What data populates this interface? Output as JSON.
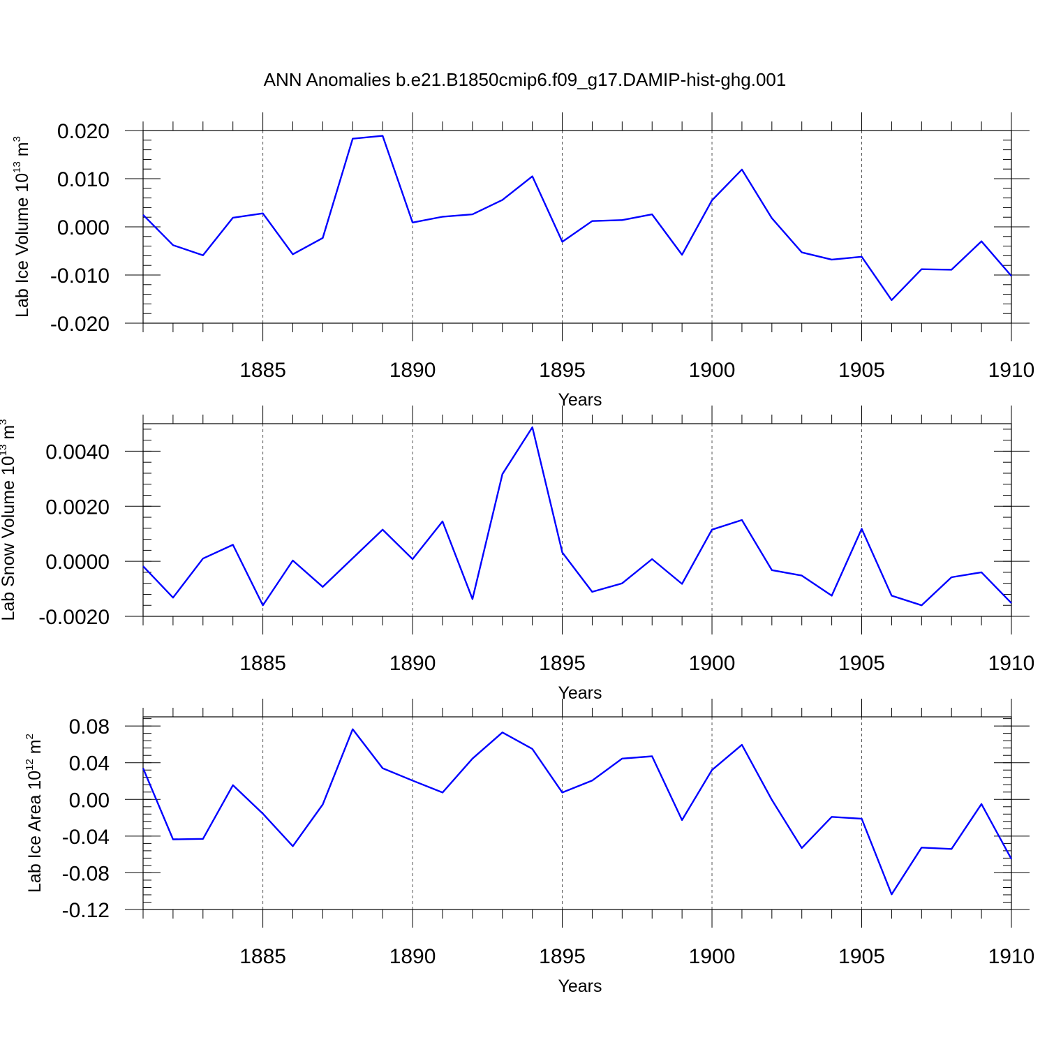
{
  "title": "ANN Anomalies b.e21.B1850cmip6.f09_g17.DAMIP-hist-ghg.001",
  "colors": {
    "series": "#0000ff",
    "axes": "#000000",
    "gridline": "#555555"
  },
  "chart_data": [
    {
      "type": "line",
      "ylabel": {
        "text": "Lab Ice Volume 10",
        "exponent": "13",
        "unit": " m",
        "unit_exponent": "3"
      },
      "xlabel": "Years",
      "xlim": [
        1881,
        1910
      ],
      "ylim": [
        -0.02,
        0.02
      ],
      "ytick_labels": [
        "-0.020",
        "-0.010",
        "0.000",
        "0.010",
        "0.020"
      ],
      "yticks": [
        -0.02,
        -0.01,
        0.0,
        0.01,
        0.02
      ],
      "xticks": [
        1885,
        1890,
        1895,
        1900,
        1905,
        1910
      ],
      "xtick_labels": [
        "1885",
        "1890",
        "1895",
        "1900",
        "1905",
        "1910"
      ],
      "grid": "vertical dashed at major x ticks",
      "series": [
        {
          "x": [
            1881,
            1882,
            1883,
            1884,
            1885,
            1886,
            1887,
            1888,
            1889,
            1890,
            1891,
            1892,
            1893,
            1894,
            1895,
            1896,
            1897,
            1898,
            1899,
            1900,
            1901,
            1902,
            1903,
            1904,
            1905,
            1906,
            1907,
            1908,
            1909,
            1910
          ],
          "values": [
            0.0025,
            -0.0038,
            -0.0059,
            0.0019,
            0.0028,
            -0.0057,
            -0.0023,
            0.0183,
            0.0189,
            0.0009,
            0.0021,
            0.0026,
            0.0056,
            0.0105,
            -0.0031,
            0.0012,
            0.0014,
            0.0026,
            -0.0058,
            0.0055,
            0.0119,
            0.0018,
            -0.0053,
            -0.0068,
            -0.0062,
            -0.0152,
            -0.0088,
            -0.0089,
            -0.003,
            -0.0102
          ]
        }
      ]
    },
    {
      "type": "line",
      "ylabel": {
        "text": "Lab Snow Volume 10",
        "exponent": "13",
        "unit": " m",
        "unit_exponent": "3"
      },
      "xlabel": "Years",
      "xlim": [
        1881,
        1910
      ],
      "ylim": [
        -0.002,
        0.005
      ],
      "ytick_labels": [
        "-0.0020",
        "0.0000",
        "0.0020",
        "0.0040"
      ],
      "yticks": [
        -0.002,
        0.0,
        0.002,
        0.004
      ],
      "xticks": [
        1885,
        1890,
        1895,
        1900,
        1905,
        1910
      ],
      "xtick_labels": [
        "1885",
        "1890",
        "1895",
        "1900",
        "1905",
        "1910"
      ],
      "grid": "vertical dashed at major x ticks",
      "series": [
        {
          "x": [
            1881,
            1882,
            1883,
            1884,
            1885,
            1886,
            1887,
            1888,
            1889,
            1890,
            1891,
            1892,
            1893,
            1894,
            1895,
            1896,
            1897,
            1898,
            1899,
            1900,
            1901,
            1902,
            1903,
            1904,
            1905,
            1906,
            1907,
            1908,
            1909,
            1910
          ],
          "values": [
            -0.00018,
            -0.00132,
            0.0001,
            0.0006,
            -0.0016,
            3e-05,
            -0.00093,
            0.00011,
            0.00115,
            8e-05,
            0.00145,
            -0.00137,
            0.00317,
            0.00487,
            0.00032,
            -0.00111,
            -0.0008,
            8e-05,
            -0.00082,
            0.00115,
            0.0015,
            -0.00032,
            -0.00052,
            -0.00125,
            0.00118,
            -0.00125,
            -0.0016,
            -0.00058,
            -0.0004,
            -0.00152
          ]
        }
      ]
    },
    {
      "type": "line",
      "ylabel": {
        "text": "Lab Ice Area 10",
        "exponent": "12",
        "unit": " m",
        "unit_exponent": "2"
      },
      "xlabel": "Years",
      "xlim": [
        1881,
        1910
      ],
      "ylim": [
        -0.12,
        0.09
      ],
      "ytick_labels": [
        "-0.12",
        "-0.08",
        "-0.04",
        "0.00",
        "0.04",
        "0.08"
      ],
      "yticks": [
        -0.12,
        -0.08,
        -0.04,
        0.0,
        0.04,
        0.08
      ],
      "xticks": [
        1885,
        1890,
        1895,
        1900,
        1905,
        1910
      ],
      "xtick_labels": [
        "1885",
        "1890",
        "1895",
        "1900",
        "1905",
        "1910"
      ],
      "grid": "vertical dashed at major x ticks",
      "series": [
        {
          "x": [
            1881,
            1882,
            1883,
            1884,
            1885,
            1886,
            1887,
            1888,
            1889,
            1890,
            1891,
            1892,
            1893,
            1894,
            1895,
            1896,
            1897,
            1898,
            1899,
            1900,
            1901,
            1902,
            1903,
            1904,
            1905,
            1906,
            1907,
            1908,
            1909,
            1910
          ],
          "values": [
            0.034,
            -0.0435,
            -0.043,
            0.0155,
            -0.0155,
            -0.051,
            -0.0055,
            0.0765,
            0.034,
            0.0205,
            0.0075,
            0.0445,
            0.073,
            0.055,
            0.0075,
            0.0205,
            0.0445,
            0.047,
            -0.0225,
            0.032,
            0.0595,
            -0.0005,
            -0.053,
            -0.019,
            -0.021,
            -0.1035,
            -0.0525,
            -0.054,
            -0.005,
            -0.065
          ]
        }
      ]
    }
  ]
}
